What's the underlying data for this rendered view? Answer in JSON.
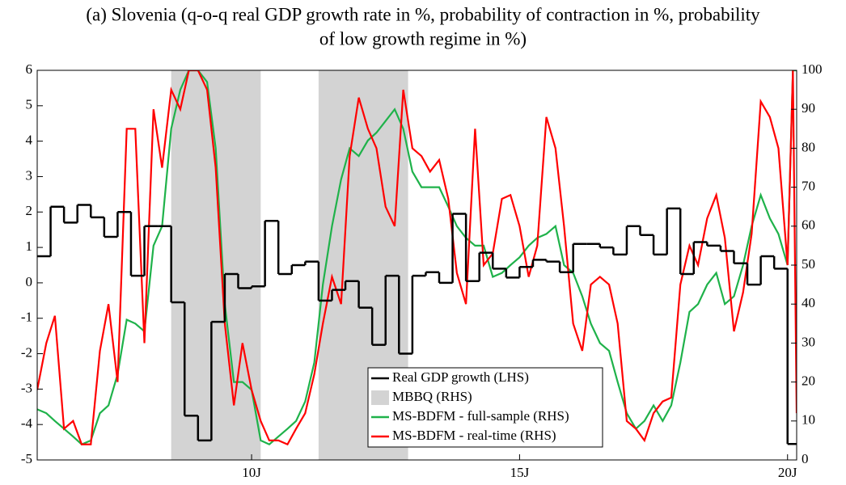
{
  "chart_data": {
    "type": "line",
    "title": [
      "(a) Slovenia (q-o-q real GDP growth rate in %, probability of contraction in %, probability",
      "of low growth regime in %)"
    ],
    "xlim": [
      2006,
      2020.17
    ],
    "xticks": [
      {
        "value": 2010,
        "label": "10J"
      },
      {
        "value": 2015,
        "label": "15J"
      },
      {
        "value": 2020,
        "label": "20J"
      }
    ],
    "ylim": [
      -5,
      6
    ],
    "yticks": [
      -5,
      -4,
      -3,
      -2,
      -1,
      0,
      1,
      2,
      3,
      4,
      5,
      6
    ],
    "y2lim": [
      0,
      100
    ],
    "y2ticks": [
      0,
      10,
      20,
      30,
      40,
      50,
      60,
      70,
      80,
      90,
      100
    ],
    "legend": "lower center",
    "gdp": {
      "name": "Real GDP growth (LHS)",
      "color": "#000000",
      "step": 0.25,
      "x": [
        2006,
        2006.25,
        2006.5,
        2006.75,
        2007,
        2007.25,
        2007.5,
        2007.75,
        2008,
        2008.25,
        2008.5,
        2008.75,
        2009,
        2009.25,
        2009.5,
        2009.75,
        2010,
        2010.25,
        2010.5,
        2010.75,
        2011,
        2011.25,
        2011.5,
        2011.75,
        2012,
        2012.25,
        2012.5,
        2012.75,
        2013,
        2013.25,
        2013.5,
        2013.75,
        2014,
        2014.25,
        2014.5,
        2014.75,
        2015,
        2015.25,
        2015.5,
        2015.75,
        2016,
        2016.25,
        2016.5,
        2016.75,
        2017,
        2017.25,
        2017.5,
        2017.75,
        2018,
        2018.25,
        2018.5,
        2018.75,
        2019,
        2019.25,
        2019.5,
        2019.75,
        2020
      ],
      "values": [
        0.75,
        2.15,
        1.7,
        2.2,
        1.85,
        1.3,
        2.0,
        0.2,
        1.6,
        1.6,
        -0.55,
        -3.75,
        -4.45,
        -1.1,
        0.25,
        -0.15,
        -0.1,
        1.75,
        0.25,
        0.5,
        0.6,
        -0.5,
        -0.2,
        0.05,
        -0.7,
        -1.75,
        0.2,
        -2.0,
        0.2,
        0.3,
        0.0,
        1.95,
        0.05,
        0.85,
        0.4,
        0.15,
        0.45,
        0.65,
        0.6,
        0.3,
        1.1,
        1.1,
        1.0,
        0.8,
        1.6,
        1.35,
        0.8,
        2.1,
        0.25,
        1.15,
        1.05,
        0.9,
        0.55,
        -0.05,
        0.75,
        0.4,
        -4.55
      ]
    },
    "shading": {
      "name": "MBBQ (RHS)",
      "color": "#d3d3d3",
      "axis": "y2",
      "periods": [
        [
          2008.5,
          2010.17
        ],
        [
          2011.25,
          2012.92
        ]
      ]
    },
    "x": [
      2006,
      2006.17,
      2006.33,
      2006.5,
      2006.67,
      2006.83,
      2007,
      2007.17,
      2007.33,
      2007.5,
      2007.67,
      2007.83,
      2008,
      2008.17,
      2008.33,
      2008.5,
      2008.67,
      2008.83,
      2009,
      2009.17,
      2009.33,
      2009.5,
      2009.67,
      2009.83,
      2010,
      2010.17,
      2010.33,
      2010.5,
      2010.67,
      2010.83,
      2011,
      2011.17,
      2011.33,
      2011.5,
      2011.67,
      2011.83,
      2012,
      2012.17,
      2012.33,
      2012.5,
      2012.67,
      2012.83,
      2013,
      2013.17,
      2013.33,
      2013.5,
      2013.67,
      2013.83,
      2014,
      2014.17,
      2014.33,
      2014.5,
      2014.67,
      2014.83,
      2015,
      2015.17,
      2015.33,
      2015.5,
      2015.67,
      2015.83,
      2016,
      2016.17,
      2016.33,
      2016.5,
      2016.67,
      2016.83,
      2017,
      2017.17,
      2017.33,
      2017.5,
      2017.67,
      2017.83,
      2018,
      2018.17,
      2018.33,
      2018.5,
      2018.67,
      2018.83,
      2019,
      2019.17,
      2019.33,
      2019.5,
      2019.67,
      2019.83,
      2020,
      2020.1,
      2020.17
    ],
    "series": [
      {
        "name": "MS-BDFM - full-sample (RHS)",
        "color": "#1fb24a",
        "axis": "y2",
        "values": [
          13,
          12,
          10,
          8,
          6,
          4,
          5,
          12,
          14,
          22,
          36,
          35,
          33,
          55,
          60,
          85,
          95,
          100,
          100,
          97,
          80,
          40,
          20,
          20,
          18,
          5,
          4,
          6,
          8,
          10,
          15,
          25,
          45,
          60,
          72,
          80,
          78,
          82,
          84,
          87,
          90,
          85,
          74,
          70,
          70,
          70,
          65,
          60,
          57,
          55,
          55,
          47,
          48,
          50,
          52,
          55,
          57,
          58,
          60,
          50,
          48,
          42,
          35,
          30,
          28,
          20,
          12,
          8,
          10,
          14,
          10,
          14,
          25,
          38,
          40,
          45,
          48,
          40,
          42,
          50,
          60,
          68,
          62,
          58,
          50,
          100,
          100
        ]
      },
      {
        "name": "MS-BDFM - real-time (RHS)",
        "color": "#ff0000",
        "axis": "y2",
        "values": [
          18,
          30,
          37,
          8,
          10,
          4,
          4,
          28,
          40,
          20,
          85,
          85,
          30,
          90,
          75,
          95,
          90,
          100,
          100,
          95,
          75,
          35,
          14,
          30,
          18,
          10,
          5,
          5,
          4,
          8,
          12,
          22,
          35,
          47,
          40,
          78,
          93,
          85,
          80,
          65,
          60,
          95,
          80,
          78,
          74,
          77,
          67,
          48,
          40,
          85,
          50,
          53,
          67,
          68,
          60,
          47,
          55,
          88,
          80,
          60,
          35,
          28,
          45,
          47,
          45,
          35,
          10,
          8,
          5,
          12,
          15,
          16,
          45,
          55,
          50,
          62,
          68,
          57,
          33,
          43,
          58,
          92,
          88,
          80,
          50,
          100,
          12
        ]
      }
    ]
  }
}
